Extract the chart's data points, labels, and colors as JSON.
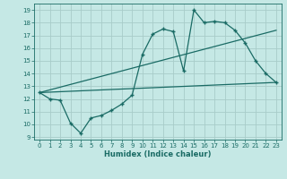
{
  "title": "",
  "xlabel": "Humidex (Indice chaleur)",
  "ylabel": "",
  "bg_color": "#c5e8e5",
  "grid_color": "#a8ccc9",
  "line_color": "#1a6b65",
  "xlim": [
    -0.5,
    23.5
  ],
  "ylim": [
    8.8,
    19.5
  ],
  "yticks": [
    9,
    10,
    11,
    12,
    13,
    14,
    15,
    16,
    17,
    18,
    19
  ],
  "xticks": [
    0,
    1,
    2,
    3,
    4,
    5,
    6,
    7,
    8,
    9,
    10,
    11,
    12,
    13,
    14,
    15,
    16,
    17,
    18,
    19,
    20,
    21,
    22,
    23
  ],
  "line1_x": [
    0,
    1,
    2,
    3,
    4,
    5,
    6,
    7,
    8,
    9,
    10,
    11,
    12,
    13,
    14,
    15,
    16,
    17,
    18,
    19,
    20,
    21,
    22,
    23
  ],
  "line1_y": [
    12.5,
    12.0,
    11.9,
    10.1,
    9.3,
    10.5,
    10.7,
    11.1,
    11.6,
    12.3,
    15.5,
    17.1,
    17.5,
    17.3,
    14.2,
    19.0,
    18.0,
    18.1,
    18.0,
    17.4,
    16.4,
    15.0,
    14.0,
    13.3
  ],
  "line2_x": [
    0,
    23
  ],
  "line2_y": [
    12.5,
    17.4
  ],
  "line3_x": [
    0,
    23
  ],
  "line3_y": [
    12.5,
    13.3
  ]
}
